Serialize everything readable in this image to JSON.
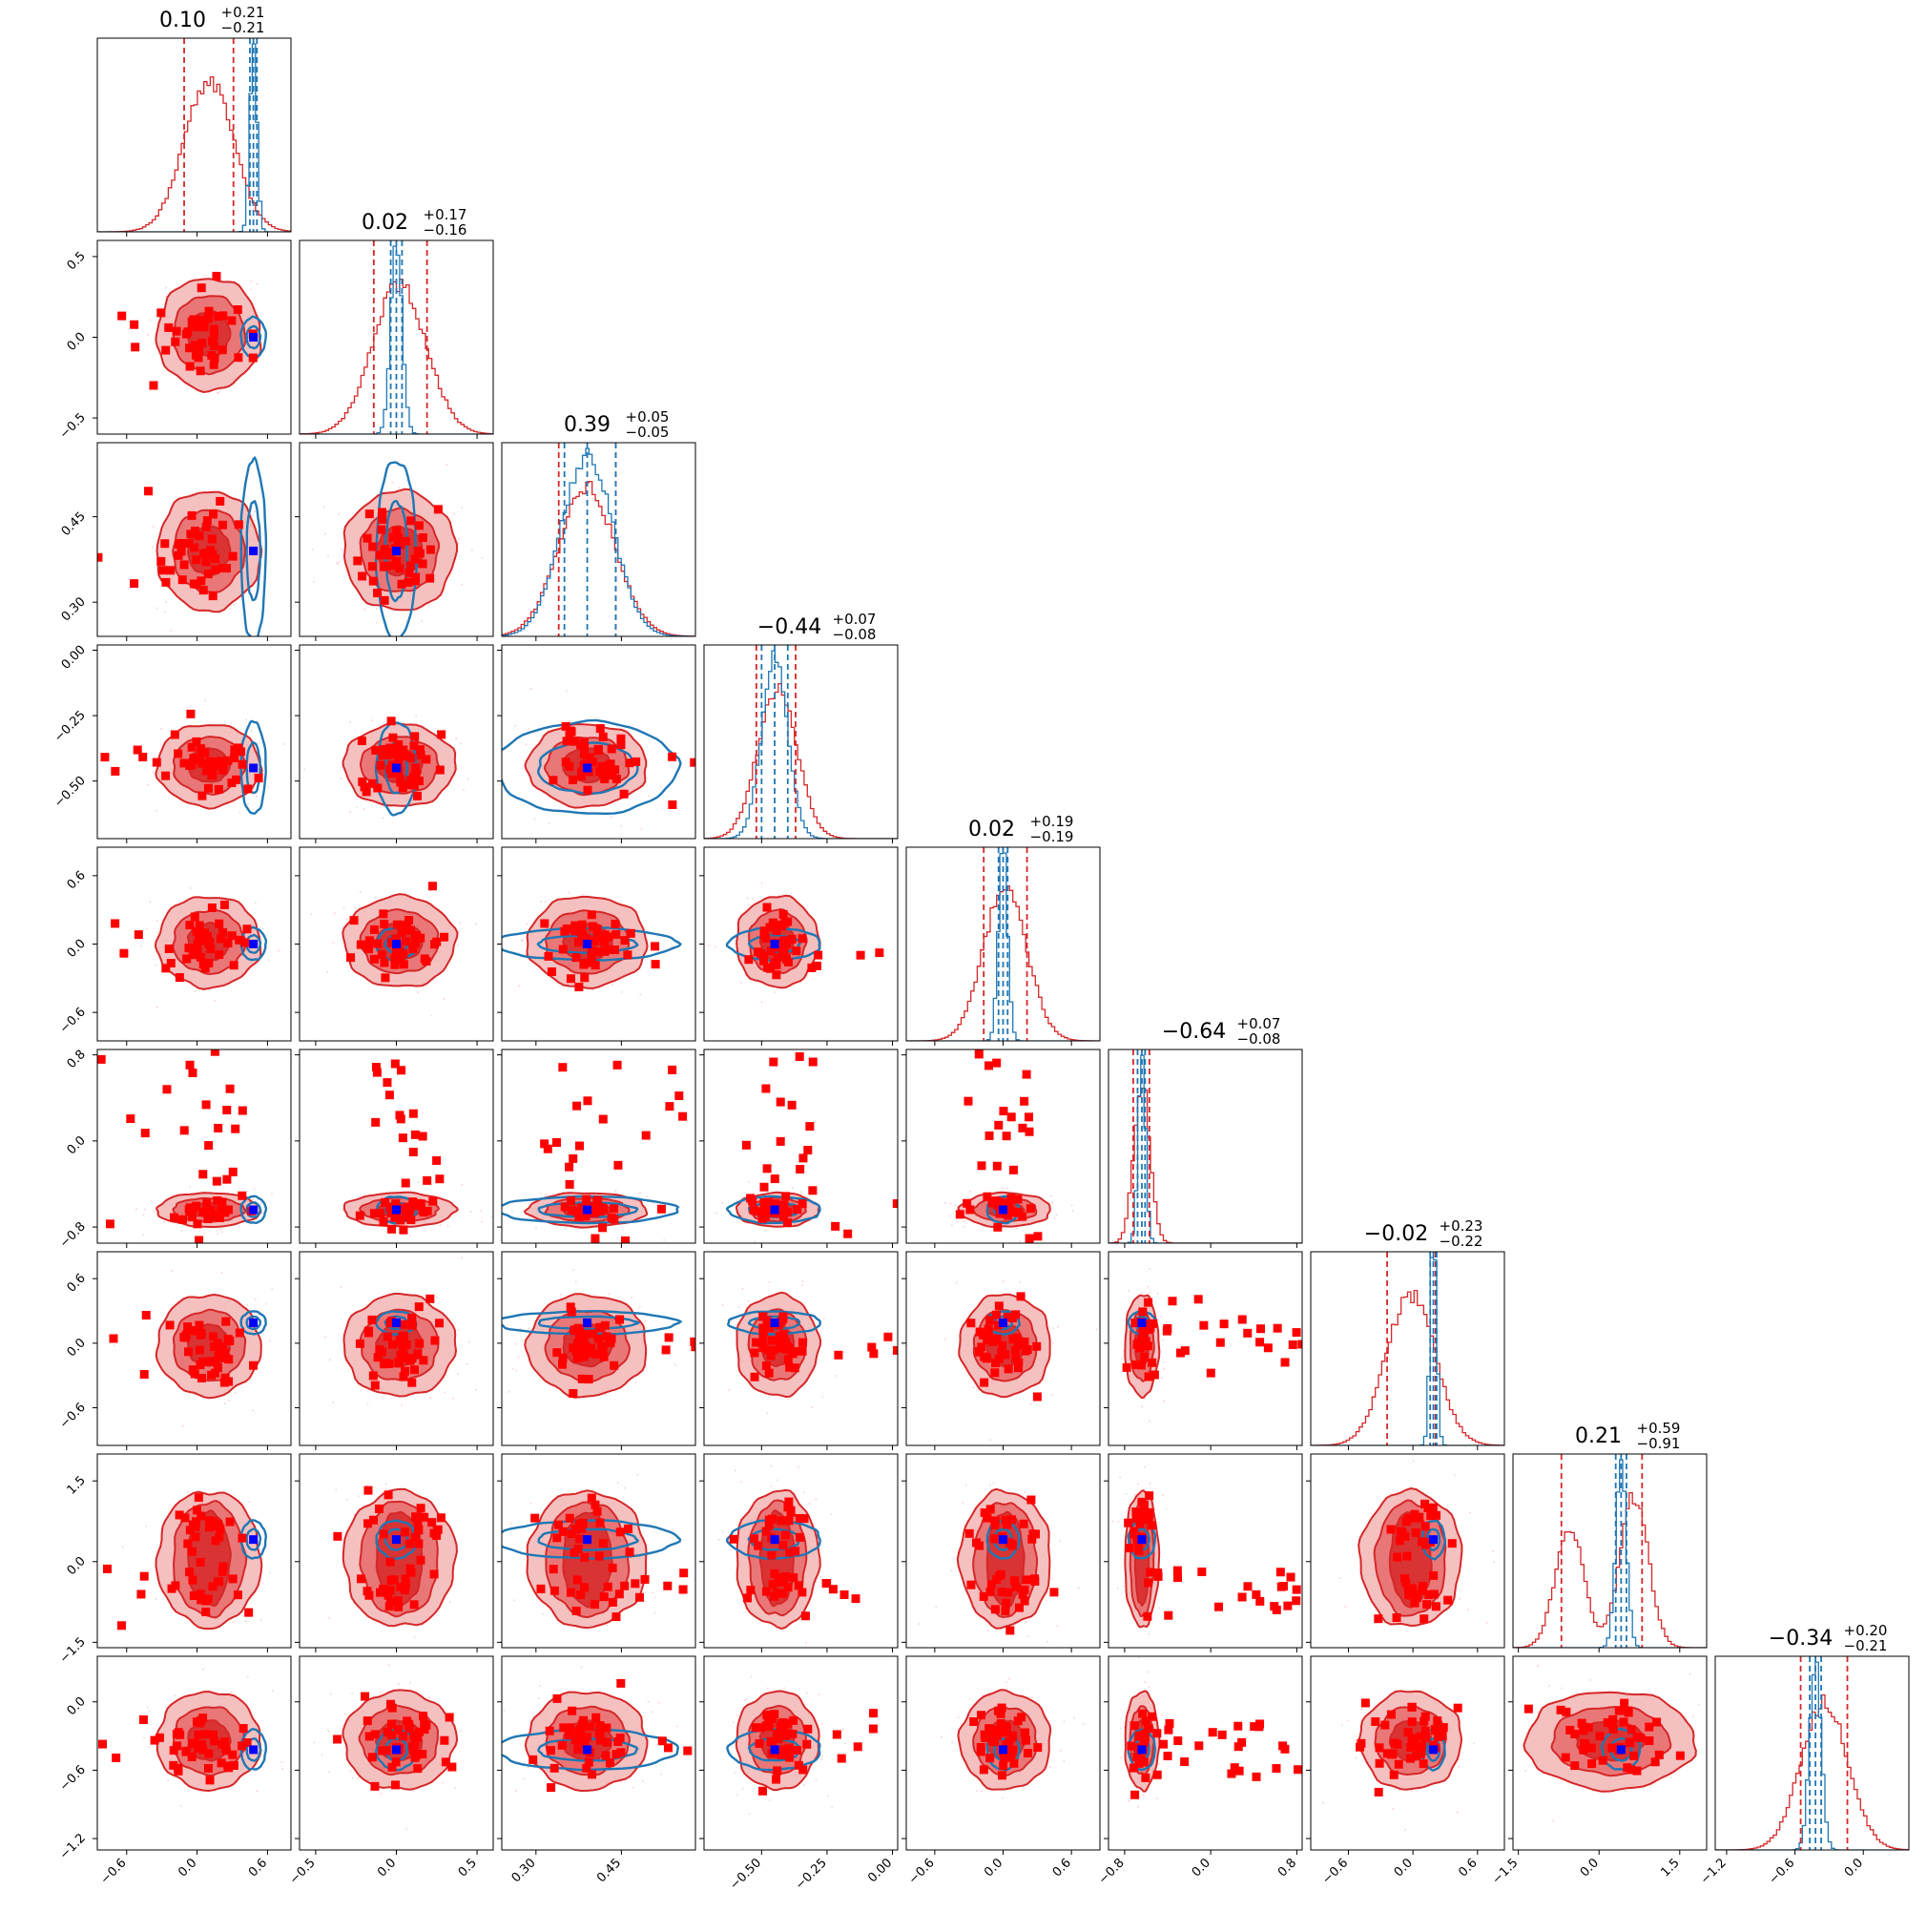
{
  "chart_data": {
    "type": "corner",
    "n_params": 9,
    "colors": {
      "red": "#d62728",
      "red_fill_outer": "#f3b5b5",
      "red_fill_mid": "#e86a6a",
      "red_fill_inner": "#d62728",
      "blue": "#1f77b4",
      "marker_red": "#ff0000",
      "marker_blue": "#0000ff"
    },
    "ranges": [
      [
        -0.85,
        0.8
      ],
      [
        -0.6,
        0.6
      ],
      [
        0.24,
        0.58
      ],
      [
        -0.72,
        0.02
      ],
      [
        -0.85,
        0.85
      ],
      [
        -0.95,
        0.85
      ],
      [
        -0.95,
        0.85
      ],
      [
        -1.6,
        2.0
      ],
      [
        -1.3,
        0.4
      ]
    ],
    "ticks": [
      [
        {
          "v": -0.6,
          "label": "−0.6"
        },
        {
          "v": 0.0,
          "label": "0.0"
        },
        {
          "v": 0.6,
          "label": "0.6"
        }
      ],
      [
        {
          "v": -0.5,
          "label": "−0.5"
        },
        {
          "v": 0.0,
          "label": "0.0"
        },
        {
          "v": 0.5,
          "label": "0.5"
        }
      ],
      [
        {
          "v": 0.3,
          "label": "0.30"
        },
        {
          "v": 0.45,
          "label": "0.45"
        }
      ],
      [
        {
          "v": -0.5,
          "label": "−0.50"
        },
        {
          "v": -0.25,
          "label": "−0.25"
        },
        {
          "v": 0.0,
          "label": "0.00"
        }
      ],
      [
        {
          "v": -0.6,
          "label": "−0.6"
        },
        {
          "v": 0.0,
          "label": "0.0"
        },
        {
          "v": 0.6,
          "label": "0.6"
        }
      ],
      [
        {
          "v": -0.8,
          "label": "−0.8"
        },
        {
          "v": 0.0,
          "label": "0.0"
        },
        {
          "v": 0.8,
          "label": "0.8"
        }
      ],
      [
        {
          "v": -0.6,
          "label": "−0.6"
        },
        {
          "v": 0.0,
          "label": "0.0"
        },
        {
          "v": 0.6,
          "label": "0.6"
        }
      ],
      [
        {
          "v": -1.5,
          "label": "−1.5"
        },
        {
          "v": 0.0,
          "label": "0.0"
        },
        {
          "v": 1.5,
          "label": "1.5"
        }
      ],
      [
        {
          "v": -1.2,
          "label": "−1.2"
        },
        {
          "v": -0.6,
          "label": "−0.6"
        },
        {
          "v": 0.0,
          "label": "0.0"
        }
      ]
    ],
    "titles": [
      {
        "median": "0.10",
        "plus": "+0.21",
        "minus": "−0.21"
      },
      {
        "median": "0.02",
        "plus": "+0.17",
        "minus": "−0.16"
      },
      {
        "median": "0.39",
        "plus": "+0.05",
        "minus": "−0.05"
      },
      {
        "median": "−0.44",
        "plus": "+0.07",
        "minus": "−0.08"
      },
      {
        "median": "0.02",
        "plus": "+0.19",
        "minus": "−0.19"
      },
      {
        "median": "−0.64",
        "plus": "+0.07",
        "minus": "−0.08"
      },
      {
        "median": "−0.02",
        "plus": "+0.23",
        "minus": "−0.22"
      },
      {
        "median": "0.21",
        "plus": "+0.59",
        "minus": "−0.91"
      },
      {
        "median": "−0.34",
        "plus": "+0.20",
        "minus": "−0.21"
      }
    ],
    "red_posterior": {
      "center": [
        0.1,
        0.02,
        0.39,
        -0.44,
        0.02,
        -0.64,
        -0.02,
        0.21,
        -0.34
      ],
      "sigma": [
        0.21,
        0.165,
        0.05,
        0.075,
        0.19,
        0.075,
        0.225,
        0.75,
        0.205
      ],
      "quantile_lines": [
        [
          -0.11,
          0.31
        ],
        [
          -0.14,
          0.19
        ],
        [
          0.34,
          0.44
        ],
        [
          -0.52,
          -0.37
        ],
        [
          -0.17,
          0.21
        ],
        [
          -0.72,
          -0.57
        ],
        [
          -0.24,
          0.21
        ],
        [
          -0.7,
          0.8
        ],
        [
          -0.55,
          -0.14
        ]
      ],
      "bimodal_modes": {
        "7": [
          -0.55,
          0.65
        ]
      }
    },
    "blue_posterior": {
      "center": [
        0.48,
        0.0,
        0.39,
        -0.45,
        0.0,
        -0.64,
        0.19,
        0.41,
        -0.42
      ],
      "sigma": [
        0.03,
        0.035,
        0.045,
        0.05,
        0.04,
        0.035,
        0.03,
        0.1,
        0.05
      ],
      "quantile_lines": [
        [
          0.45,
          0.51
        ],
        [
          -0.035,
          0.035
        ],
        [
          0.35,
          0.44
        ],
        [
          -0.5,
          -0.4
        ],
        [
          -0.04,
          0.04
        ],
        [
          -0.68,
          -0.61
        ],
        [
          0.16,
          0.22
        ],
        [
          0.31,
          0.51
        ],
        [
          -0.47,
          -0.37
        ]
      ]
    },
    "truth_marker": [
      0.48,
      0.0,
      0.39,
      -0.45,
      0.0,
      -0.64,
      0.19,
      0.41,
      -0.42
    ]
  }
}
